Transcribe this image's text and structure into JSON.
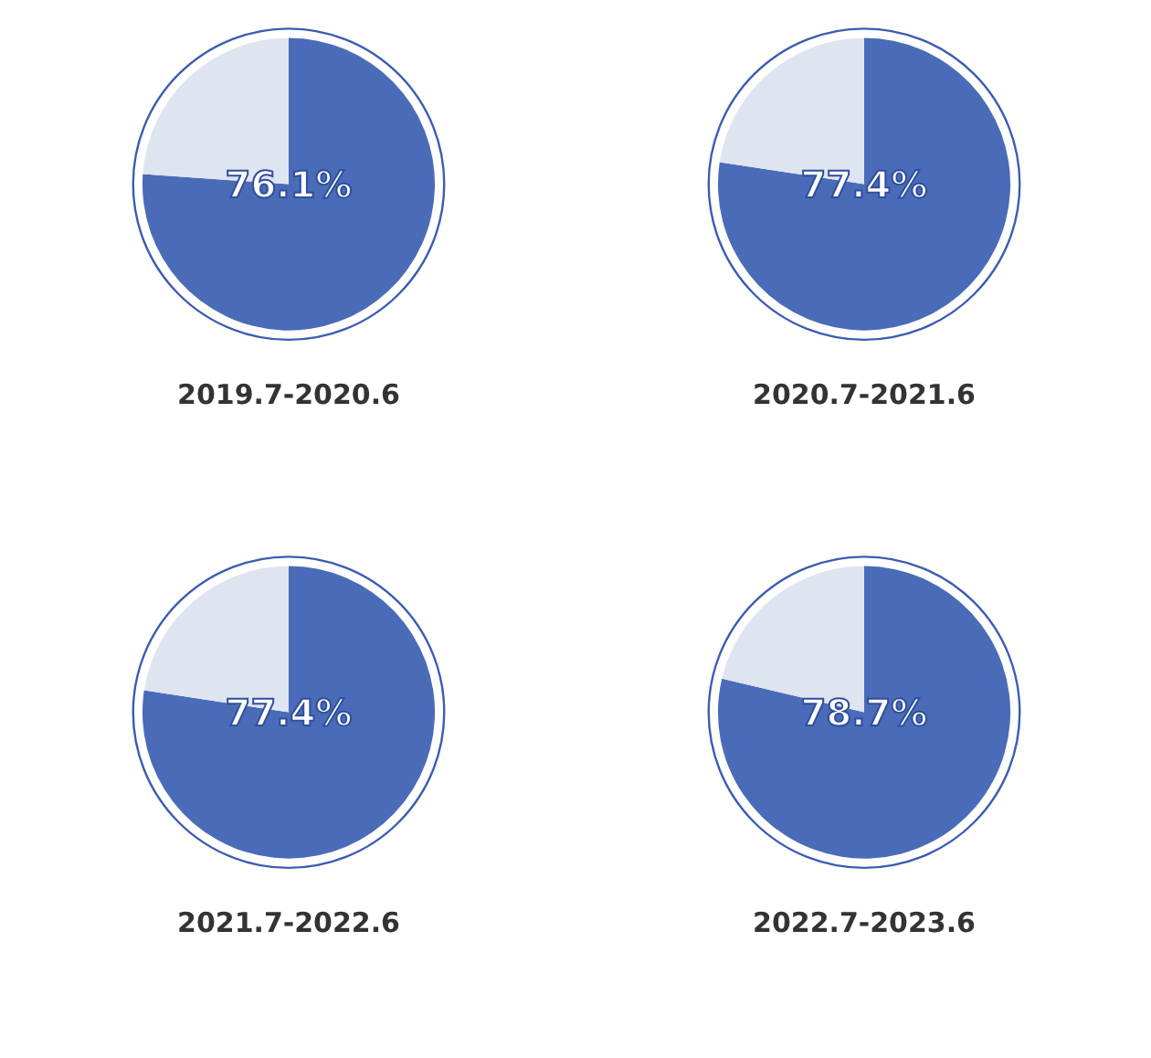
{
  "chart_data": [
    {
      "type": "pie",
      "title": "2019.7-2020.6",
      "categories": [
        null,
        null
      ],
      "values": [
        76.1,
        23.9
      ],
      "colors": [
        "#4a6cb8",
        "#dfe4f1"
      ],
      "value_labels": [
        "76.1%",
        null
      ]
    },
    {
      "type": "pie",
      "title": "2020.7-2021.6",
      "categories": [
        null,
        null
      ],
      "values": [
        77.4,
        22.6
      ],
      "colors": [
        "#4a6cb8",
        "#dfe4f1"
      ],
      "value_labels": [
        "77.4%",
        null
      ]
    },
    {
      "type": "pie",
      "title": "2021.7-2022.6",
      "categories": [
        null,
        null
      ],
      "values": [
        77.4,
        22.6
      ],
      "colors": [
        "#4a6cb8",
        "#dfe4f1"
      ],
      "value_labels": [
        "77.4%",
        null
      ]
    },
    {
      "type": "pie",
      "title": "2022.7-2023.6",
      "categories": [
        null,
        null
      ],
      "values": [
        78.7,
        21.3
      ],
      "colors": [
        "#4a6cb8",
        "#dfe4f1"
      ],
      "value_labels": [
        "78.7%",
        null
      ]
    }
  ]
}
